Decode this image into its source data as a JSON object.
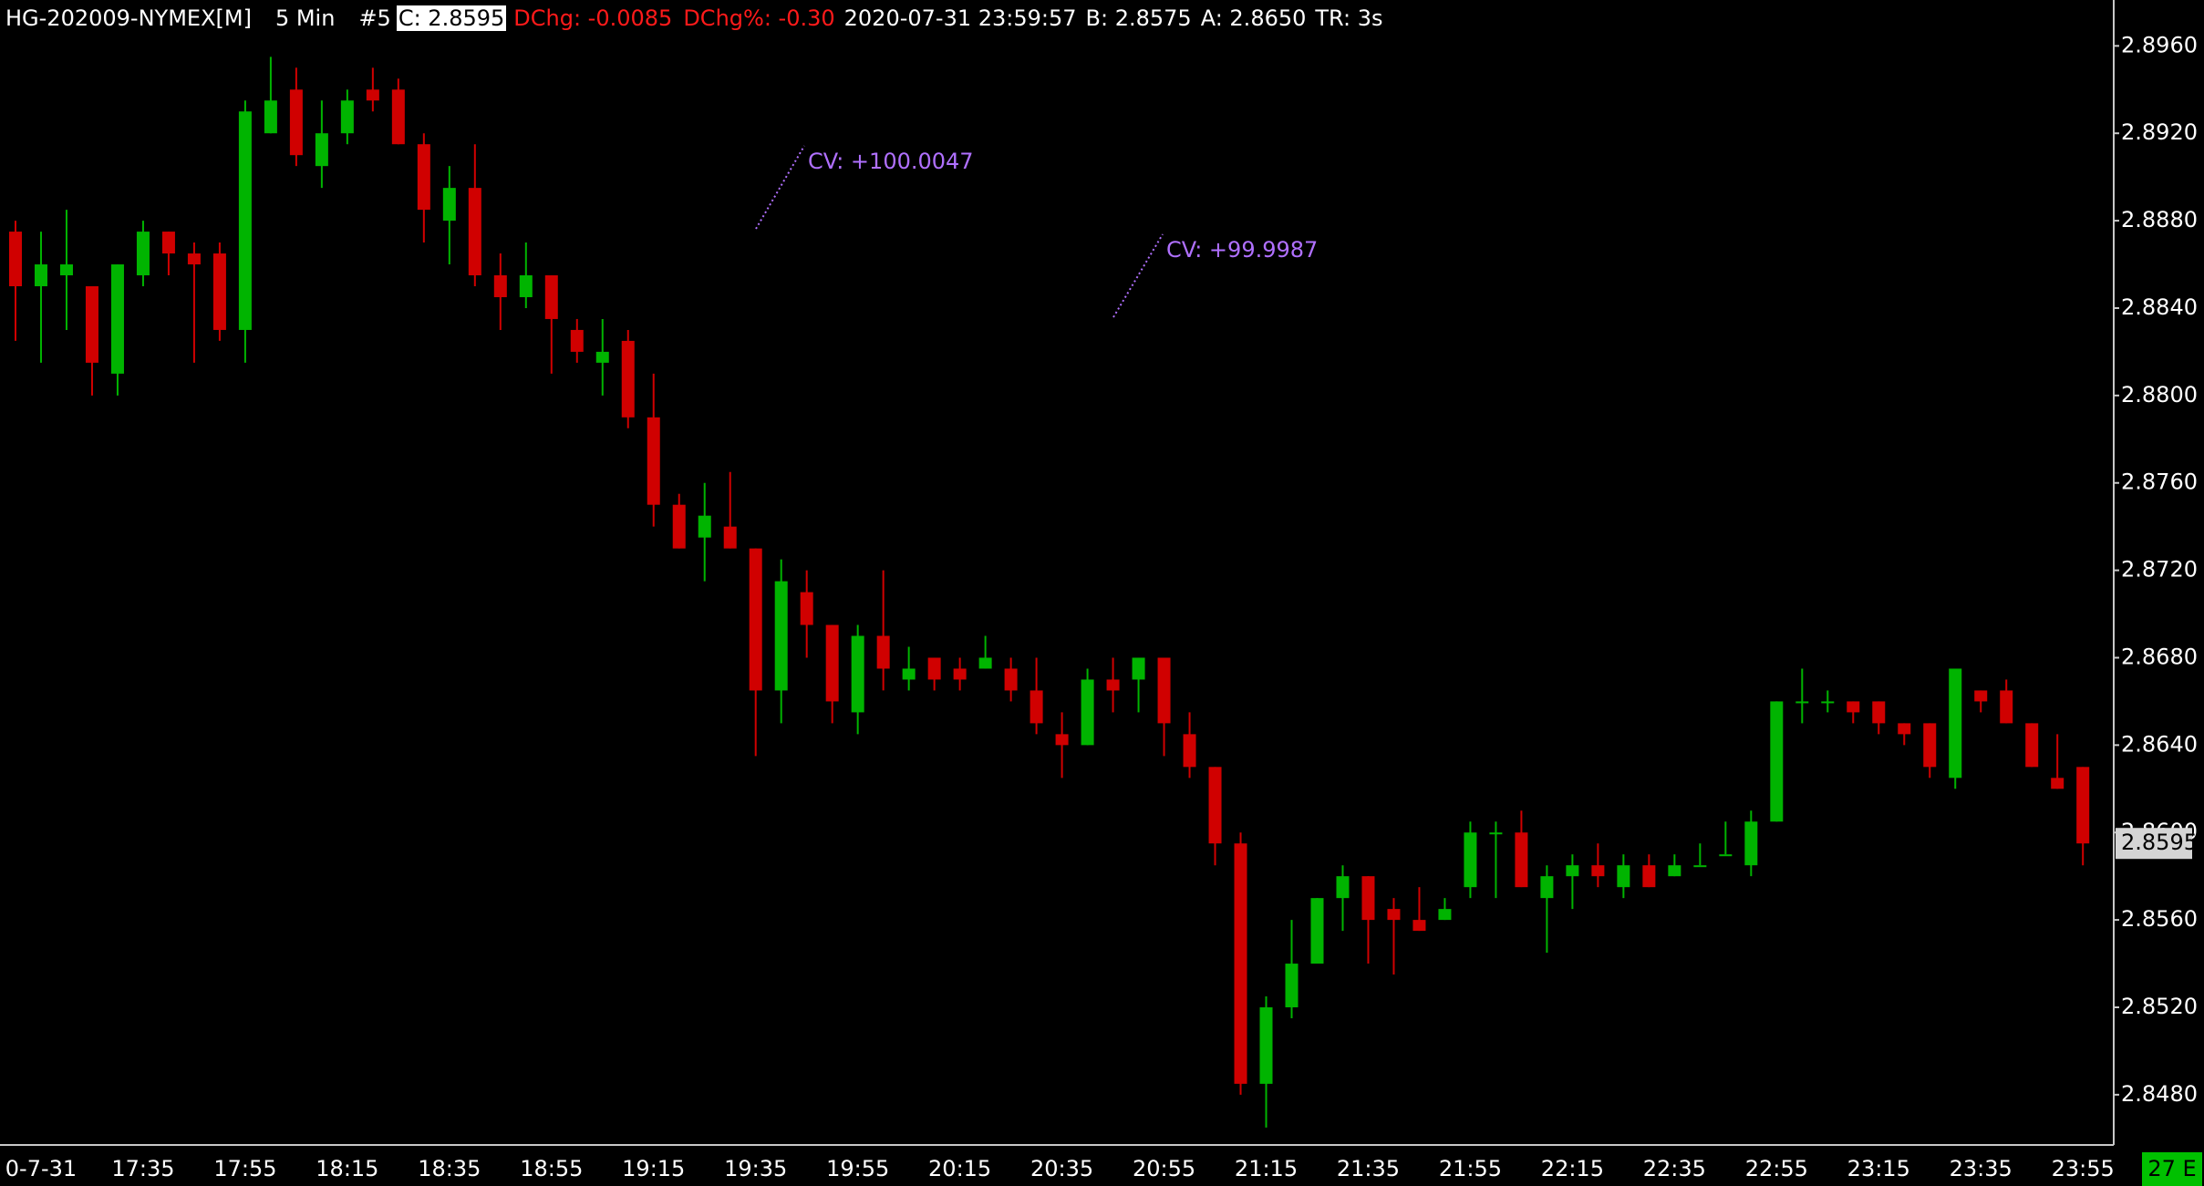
{
  "chart_data": {
    "type": "candlestick",
    "header": [
      {
        "text": "HG-202009-NYMEX[M]",
        "color": "#ffffff"
      },
      {
        "text": "5 Min",
        "color": "#ffffff"
      },
      {
        "text": "#5",
        "color": "#ffffff"
      },
      {
        "text": "C: 2.8595",
        "color": "#000000",
        "background": "#ffffff"
      },
      {
        "text": "DChg: -0.0085",
        "color": "#ff1a1a"
      },
      {
        "text": "DChg%: -0.30",
        "color": "#ff1a1a"
      },
      {
        "text": "2020-07-31 23:59:57",
        "color": "#ffffff"
      },
      {
        "text": "B: 2.8575",
        "color": "#ffffff"
      },
      {
        "text": "A: 2.8650",
        "color": "#ffffff"
      },
      {
        "text": "TR: 3s",
        "color": "#ffffff"
      }
    ],
    "categories": [
      null,
      "0-7-31",
      null,
      null,
      null,
      "17:35",
      null,
      null,
      null,
      "17:55",
      null,
      null,
      null,
      "18:15",
      null,
      null,
      null,
      "18:35",
      null,
      null,
      null,
      "18:55",
      null,
      null,
      null,
      "19:15",
      null,
      null,
      null,
      "19:35",
      null,
      null,
      null,
      "19:55",
      null,
      null,
      null,
      "20:15",
      null,
      null,
      null,
      "20:35",
      null,
      null,
      null,
      "20:55",
      null,
      null,
      null,
      "21:15",
      null,
      null,
      null,
      "21:35",
      null,
      null,
      null,
      "21:55",
      null,
      null,
      null,
      "22:15",
      null,
      null,
      null,
      "22:35",
      null,
      null,
      null,
      "22:55",
      null,
      null,
      null,
      "23:15",
      null,
      null,
      null,
      "23:35",
      null,
      null,
      null,
      "23:55"
    ],
    "open": [
      2.8875,
      2.885,
      2.8855,
      2.885,
      2.881,
      2.8855,
      2.8875,
      2.8865,
      2.8865,
      2.883,
      2.892,
      2.894,
      2.8905,
      2.892,
      2.894,
      2.894,
      2.8915,
      2.888,
      2.8895,
      2.8855,
      2.8845,
      2.8855,
      2.883,
      2.8815,
      2.8825,
      2.879,
      2.875,
      2.8735,
      2.874,
      2.873,
      2.8665,
      2.871,
      2.8695,
      2.8655,
      2.869,
      2.867,
      2.868,
      2.8675,
      2.8675,
      2.8675,
      2.8665,
      2.8645,
      2.864,
      2.867,
      2.867,
      2.868,
      2.8645,
      2.863,
      2.8595,
      2.8485,
      2.852,
      2.854,
      2.857,
      2.858,
      2.8565,
      2.856,
      2.856,
      2.8575,
      2.86,
      2.86,
      2.857,
      2.858,
      2.8585,
      2.8575,
      2.8585,
      2.858,
      2.8585,
      2.859,
      2.8585,
      2.8605,
      2.866,
      2.866,
      2.866,
      2.866,
      2.865,
      2.865,
      2.8625,
      2.8665,
      2.8665,
      2.865,
      2.8625,
      2.863
    ],
    "high": [
      2.888,
      2.8875,
      2.8885,
      2.885,
      2.886,
      2.888,
      2.8875,
      2.887,
      2.887,
      2.8935,
      2.8955,
      2.895,
      2.8935,
      2.894,
      2.895,
      2.8945,
      2.892,
      2.8905,
      2.8915,
      2.8865,
      2.887,
      2.8855,
      2.8835,
      2.8835,
      2.883,
      2.881,
      2.8755,
      2.876,
      2.8765,
      2.873,
      2.8725,
      2.872,
      2.8695,
      2.8695,
      2.872,
      2.8685,
      2.868,
      2.868,
      2.869,
      2.868,
      2.868,
      2.8655,
      2.8675,
      2.868,
      2.868,
      2.868,
      2.8655,
      2.863,
      2.86,
      2.8525,
      2.856,
      2.857,
      2.8585,
      2.858,
      2.857,
      2.8575,
      2.857,
      2.8605,
      2.8605,
      2.861,
      2.8585,
      2.859,
      2.8595,
      2.859,
      2.859,
      2.859,
      2.8595,
      2.8605,
      2.861,
      2.866,
      2.8675,
      2.8665,
      2.866,
      2.866,
      2.865,
      2.865,
      2.8675,
      2.8665,
      2.867,
      2.865,
      2.8645,
      2.863
    ],
    "low": [
      2.8825,
      2.8815,
      2.883,
      2.88,
      2.88,
      2.885,
      2.8855,
      2.8815,
      2.8825,
      2.8815,
      2.892,
      2.8905,
      2.8895,
      2.8915,
      2.893,
      2.8915,
      2.887,
      2.886,
      2.885,
      2.883,
      2.884,
      2.881,
      2.8815,
      2.88,
      2.8785,
      2.874,
      2.873,
      2.8715,
      2.873,
      2.8635,
      2.865,
      2.868,
      2.865,
      2.8645,
      2.8665,
      2.8665,
      2.8665,
      2.8665,
      2.8675,
      2.866,
      2.8645,
      2.8625,
      2.864,
      2.8655,
      2.8655,
      2.8635,
      2.8625,
      2.8585,
      2.848,
      2.8465,
      2.8515,
      2.854,
      2.8555,
      2.854,
      2.8535,
      2.8555,
      2.856,
      2.857,
      2.857,
      2.8575,
      2.8545,
      2.8565,
      2.8575,
      2.857,
      2.8575,
      2.858,
      2.8585,
      2.859,
      2.858,
      2.8605,
      2.865,
      2.8655,
      2.865,
      2.8645,
      2.864,
      2.8625,
      2.862,
      2.8655,
      2.865,
      2.863,
      2.862,
      2.8585
    ],
    "close": [
      2.885,
      2.886,
      2.886,
      2.8815,
      2.886,
      2.8875,
      2.8865,
      2.886,
      2.883,
      2.893,
      2.8935,
      2.891,
      2.892,
      2.8935,
      2.8935,
      2.8915,
      2.8885,
      2.8895,
      2.8855,
      2.8845,
      2.8855,
      2.8835,
      2.882,
      2.882,
      2.879,
      2.875,
      2.873,
      2.8745,
      2.873,
      2.8665,
      2.8715,
      2.8695,
      2.866,
      2.869,
      2.8675,
      2.8675,
      2.867,
      2.867,
      2.868,
      2.8665,
      2.865,
      2.864,
      2.867,
      2.8665,
      2.868,
      2.865,
      2.863,
      2.8595,
      2.8485,
      2.852,
      2.854,
      2.857,
      2.858,
      2.856,
      2.856,
      2.8555,
      2.8565,
      2.86,
      2.86,
      2.8575,
      2.858,
      2.8585,
      2.858,
      2.8585,
      2.8575,
      2.8585,
      2.8585,
      2.859,
      2.8605,
      2.866,
      2.866,
      2.866,
      2.8655,
      2.865,
      2.8645,
      2.863,
      2.8675,
      2.866,
      2.865,
      2.863,
      2.862,
      2.8595
    ],
    "up_color": "#00b400",
    "down_color": "#d00000",
    "ylim": [
      2.8457,
      2.8981
    ],
    "yticks": [
      {
        "value": 2.848,
        "label": "2.8480"
      },
      {
        "value": 2.852,
        "label": "2.8520"
      },
      {
        "value": 2.856,
        "label": "2.8560"
      },
      {
        "value": 2.86,
        "label": "2.8600"
      },
      {
        "value": 2.864,
        "label": "2.8640"
      },
      {
        "value": 2.868,
        "label": "2.8680"
      },
      {
        "value": 2.872,
        "label": "2.8720"
      },
      {
        "value": 2.876,
        "label": "2.8760"
      },
      {
        "value": 2.88,
        "label": "2.8800"
      },
      {
        "value": 2.884,
        "label": "2.8840"
      },
      {
        "value": 2.888,
        "label": "2.8880"
      },
      {
        "value": 2.892,
        "label": "2.8920"
      },
      {
        "value": 2.896,
        "label": "2.8960"
      }
    ],
    "annotations": [
      "CV: +100.0047",
      "CV: +99.9987"
    ],
    "annotation_color": "#b070ff",
    "status": "27 E"
  }
}
